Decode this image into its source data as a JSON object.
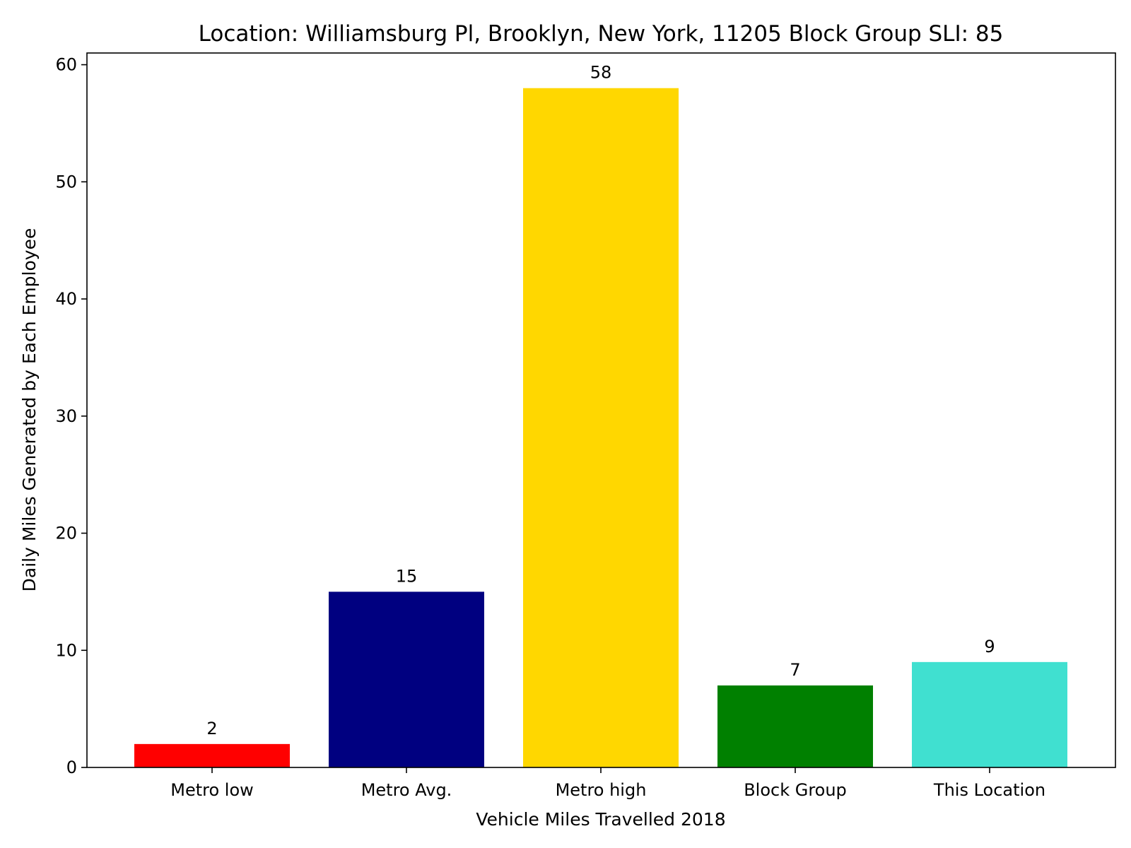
{
  "chart_data": {
    "type": "bar",
    "title": "Location: Williamsburg Pl, Brooklyn, New York, 11205 Block Group SLI: 85",
    "xlabel": "Vehicle Miles Travelled 2018",
    "ylabel": "Daily Miles Generated by Each Employee",
    "categories": [
      "Metro low",
      "Metro Avg.",
      "Metro high",
      "Block Group",
      "This Location"
    ],
    "values": [
      2,
      15,
      58,
      7,
      9
    ],
    "value_labels": [
      "2",
      "15",
      "58",
      "7",
      "9"
    ],
    "colors": [
      "#ff0000",
      "#000080",
      "#ffd700",
      "#008000",
      "#40e0d0"
    ],
    "ylim": [
      0,
      61
    ],
    "yticks": [
      0,
      10,
      20,
      30,
      40,
      50,
      60
    ],
    "grid": false,
    "legend": "none"
  }
}
